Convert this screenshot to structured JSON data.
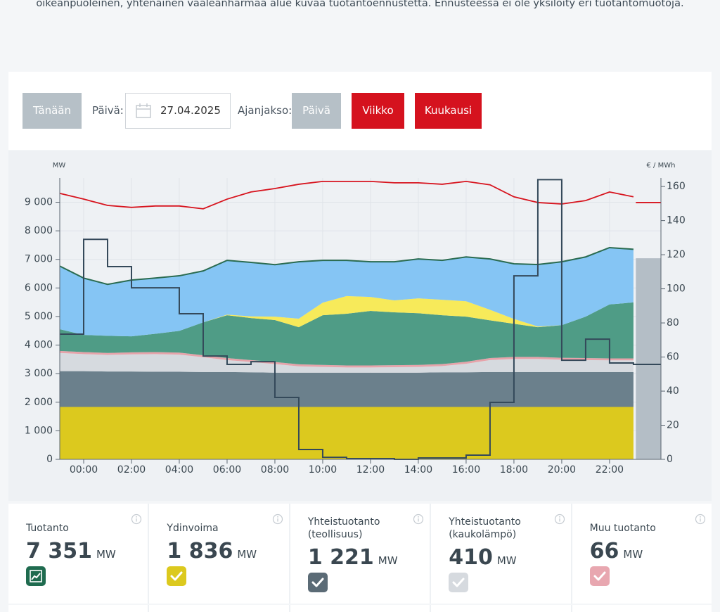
{
  "intro": "oikeanpuoleinen, yhtenäinen vaaleanharmaa alue kuvaa tuotantoennustetta. Ennusteessa ei ole yksilöity eri tuotantomuotoja.",
  "controls": {
    "today": "Tänään",
    "day_label": "Päivä:",
    "date": "27.04.2025",
    "period_label": "Ajanjakso:",
    "periods": [
      "Päivä",
      "Viikko",
      "Kuukausi"
    ]
  },
  "chart_data": {
    "type": "area",
    "y_label": "MW",
    "y2_label": "€ / MWh",
    "x": [
      -1,
      0,
      1,
      2,
      3,
      4,
      5,
      6,
      7,
      8,
      9,
      10,
      11,
      12,
      13,
      14,
      15,
      16,
      17,
      18,
      19,
      20,
      21,
      22,
      23
    ],
    "xlim": [
      -1,
      24.15
    ],
    "xticks": [
      {
        "value": 0,
        "label": "00:00"
      },
      {
        "value": 2,
        "label": "02:00"
      },
      {
        "value": 4,
        "label": "04:00"
      },
      {
        "value": 6,
        "label": "06:00"
      },
      {
        "value": 8,
        "label": "08:00"
      },
      {
        "value": 10,
        "label": "10:00"
      },
      {
        "value": 12,
        "label": "12:00"
      },
      {
        "value": 14,
        "label": "14:00"
      },
      {
        "value": 16,
        "label": "16:00"
      },
      {
        "value": 18,
        "label": "18:00"
      },
      {
        "value": 20,
        "label": "20:00"
      },
      {
        "value": 22,
        "label": "22:00"
      }
    ],
    "ylim": [
      0,
      9850
    ],
    "yticks": [
      0,
      {
        "value": 1000,
        "label": "1 000"
      },
      {
        "value": 2000,
        "label": "2 000"
      },
      {
        "value": 3000,
        "label": "3 000"
      },
      {
        "value": 4000,
        "label": "4 000"
      },
      {
        "value": 5000,
        "label": "5 000"
      },
      {
        "value": 6000,
        "label": "6 000"
      },
      {
        "value": 7000,
        "label": "7 000"
      },
      {
        "value": 8000,
        "label": "8 000"
      },
      {
        "value": 9000,
        "label": "9 000"
      }
    ],
    "y2lim": [
      0,
      165
    ],
    "y2ticks": [
      0,
      20,
      40,
      60,
      80,
      100,
      120,
      140,
      160
    ],
    "grid": true,
    "series": [
      {
        "kind": "stacked-area",
        "color": "#dcc91e",
        "values": [
          1836,
          1836,
          1836,
          1836,
          1836,
          1836,
          1836,
          1836,
          1836,
          1836,
          1836,
          1836,
          1836,
          1836,
          1836,
          1836,
          1836,
          1836,
          1836,
          1836,
          1836,
          1836,
          1836,
          1836,
          1836
        ]
      },
      {
        "kind": "stacked-area",
        "color": "#6b808c",
        "values": [
          1250,
          1250,
          1240,
          1240,
          1230,
          1230,
          1220,
          1220,
          1210,
          1200,
          1200,
          1200,
          1200,
          1200,
          1200,
          1200,
          1210,
          1210,
          1220,
          1220,
          1220,
          1220,
          1220,
          1221,
          1221
        ]
      },
      {
        "kind": "stacked-area",
        "color": "#d6dadf",
        "values": [
          640,
          600,
          580,
          600,
          620,
          600,
          520,
          420,
          360,
          300,
          220,
          200,
          180,
          180,
          190,
          200,
          220,
          300,
          420,
          460,
          460,
          430,
          420,
          410,
          410
        ]
      },
      {
        "kind": "stacked-area",
        "color": "#e6a3aa",
        "values": [
          70,
          70,
          70,
          70,
          70,
          70,
          70,
          70,
          70,
          70,
          70,
          70,
          70,
          70,
          70,
          70,
          70,
          70,
          70,
          70,
          70,
          70,
          70,
          66,
          66
        ]
      },
      {
        "kind": "stacked-area",
        "color": "#4f9c86",
        "values": [
          760,
          600,
          600,
          560,
          640,
          760,
          1150,
          1500,
          1470,
          1470,
          1300,
          1740,
          1810,
          1910,
          1850,
          1810,
          1710,
          1580,
          1320,
          1160,
          1040,
          1140,
          1450,
          1890,
          1960
        ]
      },
      {
        "kind": "stacked-area",
        "color": "#f7ea5a",
        "values": [
          0,
          0,
          0,
          0,
          0,
          0,
          0,
          20,
          60,
          120,
          300,
          440,
          620,
          490,
          420,
          520,
          540,
          540,
          370,
          170,
          25,
          0,
          0,
          0,
          0
        ]
      },
      {
        "kind": "stacked-area",
        "color": "#85c5f4",
        "line_color": "#2a6b50",
        "values": [
          2210,
          1990,
          1800,
          1970,
          1950,
          1930,
          1800,
          1900,
          1890,
          1820,
          1990,
          1480,
          1250,
          1230,
          1350,
          1380,
          1380,
          1550,
          1780,
          1930,
          2170,
          2220,
          2090,
          1990,
          1860
        ]
      },
      {
        "kind": "area",
        "color": "#b4bec6",
        "x": [
          23.1,
          24.15
        ],
        "values": [
          7040,
          7040
        ]
      },
      {
        "kind": "line",
        "color": "#d7141e",
        "values": [
          9310,
          9110,
          8890,
          8820,
          8870,
          8870,
          8770,
          9110,
          9360,
          9480,
          9630,
          9730,
          9730,
          9730,
          9680,
          9680,
          9630,
          9730,
          9610,
          9190,
          8990,
          8940,
          9060,
          9360,
          9190
        ]
      },
      {
        "kind": "line",
        "color": "#d7141e",
        "x": [
          23.1,
          24.15
        ],
        "values": [
          8990,
          8990
        ]
      },
      {
        "kind": "step",
        "axis": "y2",
        "color": "#34495a",
        "values": [
          73.4,
          129,
          113,
          100.6,
          100.6,
          85.4,
          60.6,
          55.7,
          57.3,
          36.3,
          5.8,
          1.2,
          0.4,
          0.4,
          0,
          0.8,
          0.8,
          2.5,
          33.4,
          107.6,
          164,
          58.1,
          70.5,
          56.5,
          55.7
        ]
      }
    ]
  },
  "cards": [
    {
      "title": "Tuotanto",
      "value": "7 351",
      "unit": "MW",
      "color": "#1f6b4f",
      "icon": "chart"
    },
    {
      "title": "Ydinvoima",
      "value": "1 836",
      "unit": "MW",
      "color": "#dcc91e",
      "icon": "check"
    },
    {
      "title": "Yhteistuotanto (teollisuus)",
      "value": "1 221",
      "unit": "MW",
      "color": "#5b6b76",
      "icon": "check"
    },
    {
      "title": "Yhteistuotanto (kaukolämpö)",
      "value": "410",
      "unit": "MW",
      "color": "#d6dadf",
      "icon": "check"
    },
    {
      "title": "Muu tuotanto",
      "value": "66",
      "unit": "MW",
      "color": "#e8a7b0",
      "icon": "check"
    }
  ]
}
